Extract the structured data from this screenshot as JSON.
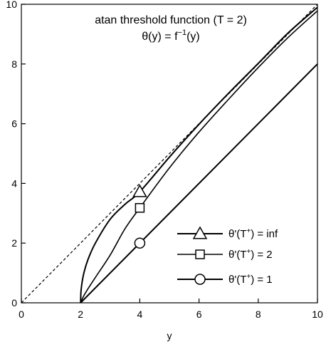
{
  "chart_data": {
    "type": "line",
    "title": "atan threshold function (T = 2)",
    "subtitle": {
      "theta_y": "θ(y) = f",
      "inv_exp": "−1",
      "arg": "(y)"
    },
    "xlabel": "y",
    "ylabel": "",
    "xlim": [
      0,
      10
    ],
    "ylim": [
      0,
      10
    ],
    "x_ticks": [
      "0",
      "2",
      "4",
      "6",
      "8",
      "10"
    ],
    "y_ticks": [
      "0",
      "2",
      "4",
      "6",
      "8",
      "10"
    ],
    "grid": false,
    "legend_position": "bottom-right",
    "identity_line": {
      "style": "dashed",
      "x": [
        0,
        10
      ],
      "y": [
        0,
        10
      ]
    },
    "series": [
      {
        "label": {
          "pre": "θ'(T",
          "sup": "+",
          "post": ") = inf"
        },
        "marker": "triangle",
        "marker_point": [
          4,
          3.72
        ],
        "x": [
          2,
          2.02,
          2.1,
          2.25,
          2.5,
          3,
          3.5,
          4,
          5,
          6,
          7,
          8,
          9,
          10
        ],
        "y": [
          0,
          0.45,
          0.95,
          1.45,
          2.0,
          2.8,
          3.3,
          3.72,
          4.88,
          5.98,
          7.02,
          8.02,
          9.03,
          9.9
        ]
      },
      {
        "label": {
          "pre": "θ'(T",
          "sup": "+",
          "post": ") = 2"
        },
        "marker": "square",
        "marker_point": [
          4,
          3.18
        ],
        "x": [
          2,
          2.1,
          2.25,
          2.5,
          3,
          3.5,
          4,
          5,
          6,
          7,
          8,
          9,
          10
        ],
        "y": [
          0,
          0.22,
          0.47,
          0.85,
          1.6,
          2.48,
          3.18,
          4.52,
          5.72,
          6.82,
          7.88,
          8.88,
          9.78
        ]
      },
      {
        "label": {
          "pre": "θ'(T",
          "sup": "+",
          "post": ") = 1"
        },
        "marker": "circle",
        "marker_point": [
          4,
          2
        ],
        "x": [
          2,
          10
        ],
        "y": [
          0,
          8
        ]
      }
    ]
  }
}
